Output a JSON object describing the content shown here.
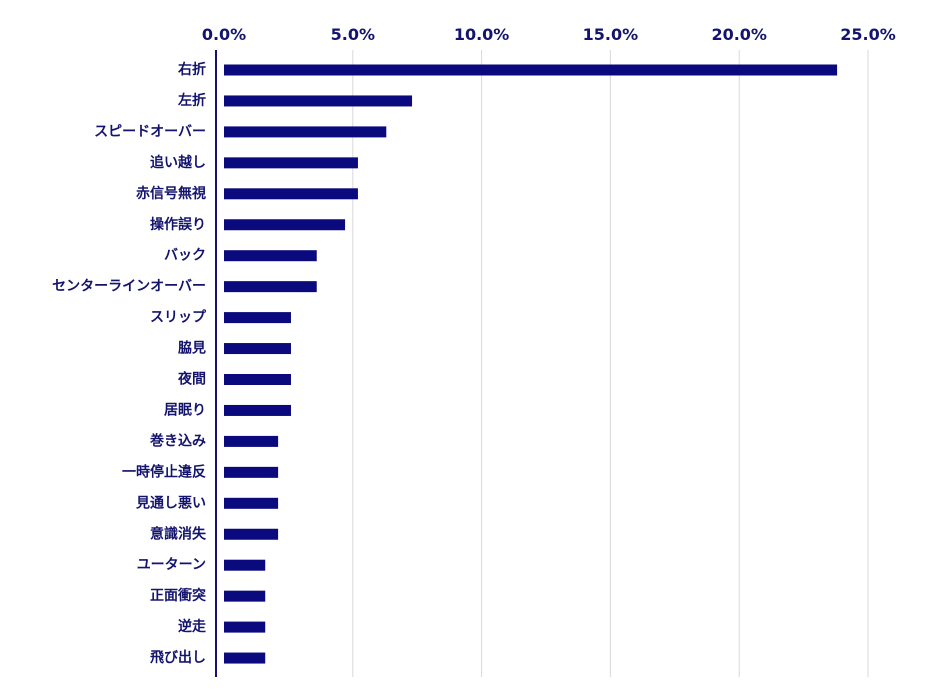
{
  "colors": {
    "bar": "#0a0a7e",
    "text": "#14146e",
    "grid": "#d9d9d9",
    "axis": "#14146e"
  },
  "chart_data": {
    "type": "bar",
    "orientation": "horizontal",
    "title": "",
    "xlabel": "",
    "ylabel": "",
    "xlim": [
      0,
      25
    ],
    "x_axis_position": "top",
    "grid": true,
    "tick_values": [
      0,
      5,
      10,
      15,
      20,
      25
    ],
    "tick_labels": [
      "0.0%",
      "5.0%",
      "10.0%",
      "15.0%",
      "20.0%",
      "25.0%"
    ],
    "categories": [
      "右折",
      "左折",
      "スピードオーバー",
      "追い越し",
      "赤信号無視",
      "操作誤り",
      "バック",
      "センターラインオーバー",
      "スリップ",
      "脇見",
      "夜間",
      "居眠り",
      "巻き込み",
      "一時停止違反",
      "見通し悪い",
      "意識消失",
      "ユーターン",
      "正面衝突",
      "逆走",
      "飛び出し"
    ],
    "values": [
      23.8,
      7.3,
      6.3,
      5.2,
      5.2,
      4.7,
      3.6,
      3.6,
      2.6,
      2.6,
      2.6,
      2.6,
      2.1,
      2.1,
      2.1,
      2.1,
      1.6,
      1.6,
      1.6,
      1.6
    ]
  }
}
